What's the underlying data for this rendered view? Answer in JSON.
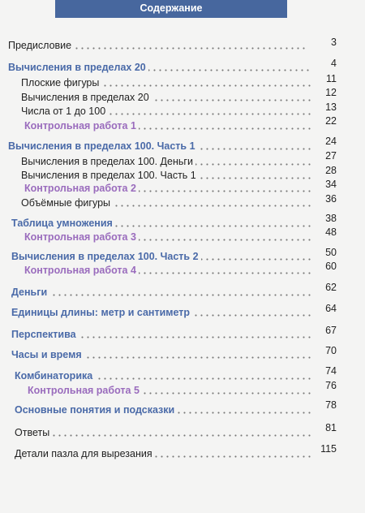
{
  "header": {
    "title": "Содержание"
  },
  "toc": [
    {
      "title": "Предисловие",
      "page": "3"
    },
    {
      "title": "Вычисления в пределах 20",
      "page": "4"
    },
    {
      "title": "Плоские фигуры",
      "page": "11"
    },
    {
      "title": "Вычисления в пределах 20",
      "page": "12"
    },
    {
      "title": "Числа от 1 до 100",
      "page": "13"
    },
    {
      "title": "Контрольная работа 1",
      "page": "22"
    },
    {
      "title": "Вычисления в пределах 100. Часть 1",
      "page": "24"
    },
    {
      "title": "Вычисления в пределах 100. Деньги",
      "page": "27"
    },
    {
      "title": "Вычисления в пределах 100. Часть 1",
      "page": "28"
    },
    {
      "title": "Контрольная работа 2",
      "page": "34"
    },
    {
      "title": "Объёмные фигуры",
      "page": "36"
    },
    {
      "title": "Таблица умножения",
      "page": "38"
    },
    {
      "title": "Контрольная работа 3",
      "page": "48"
    },
    {
      "title": "Вычисления в пределах 100. Часть 2",
      "page": "50"
    },
    {
      "title": "Контрольная работа 4",
      "page": "60"
    },
    {
      "title": "Деньги",
      "page": "62"
    },
    {
      "title": "Единицы длины: метр и сантиметр",
      "page": "64"
    },
    {
      "title": "Перспектива",
      "page": "67"
    },
    {
      "title": "Часы и время",
      "page": "70"
    },
    {
      "title": "Комбинаторика",
      "page": "74"
    },
    {
      "title": "Контрольная работа 5",
      "page": "76"
    },
    {
      "title": "Основные понятия и подсказки",
      "page": "78"
    },
    {
      "title": "Ответы",
      "page": "81"
    },
    {
      "title": "Детали пазла для вырезания",
      "page": "115"
    }
  ]
}
